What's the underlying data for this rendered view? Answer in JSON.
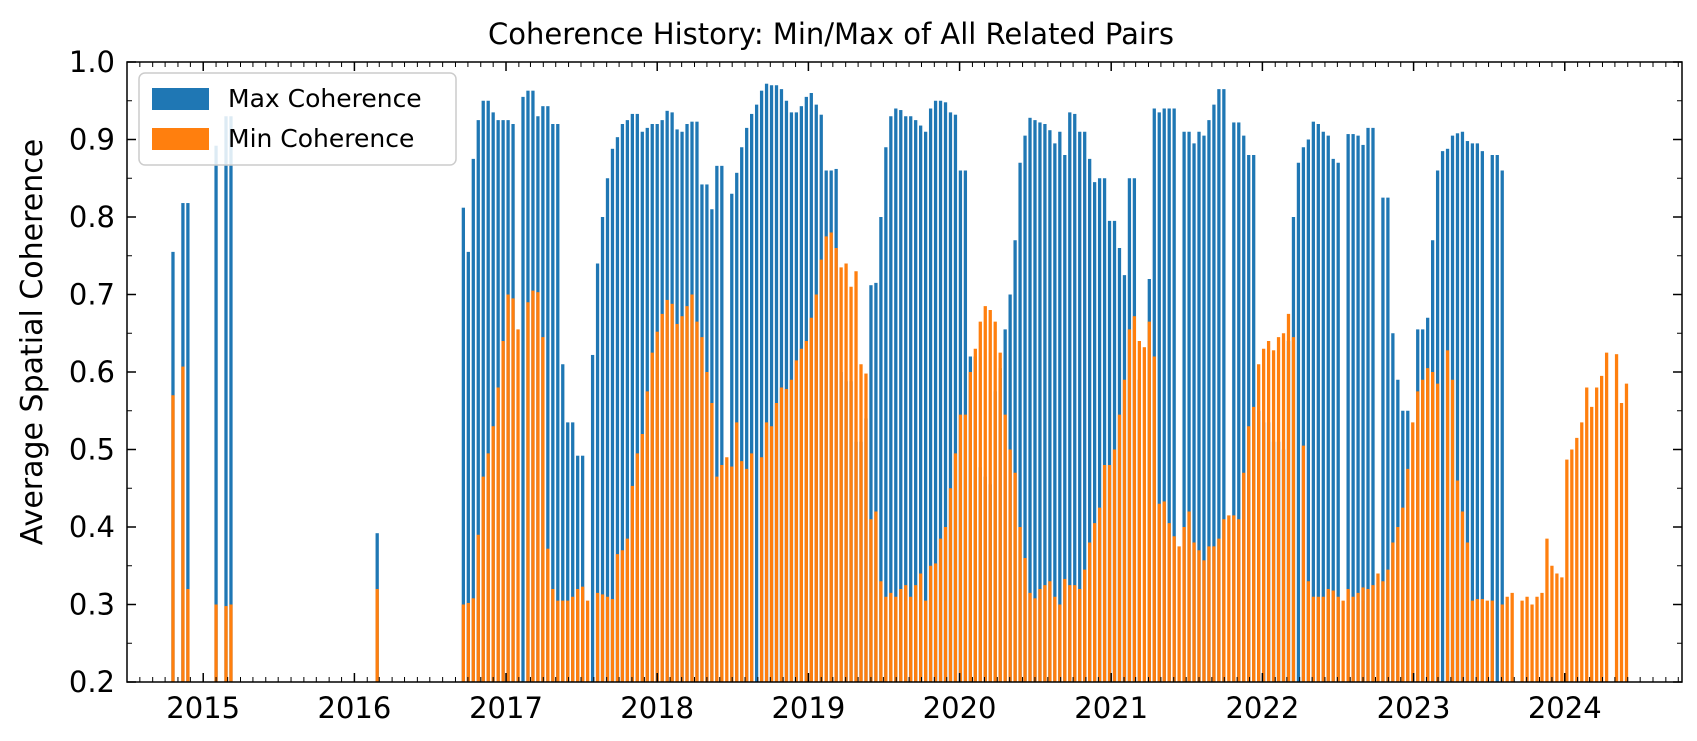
{
  "chart_data": {
    "type": "bar",
    "title": "Coherence History: Min/Max of All Related Pairs",
    "xlabel": "",
    "ylabel": "Average Spatial Coherence",
    "ylim": [
      0.2,
      1.0
    ],
    "y_ticks": [
      "0.2",
      "0.3",
      "0.4",
      "0.5",
      "0.6",
      "0.7",
      "0.8",
      "0.9",
      "1.0"
    ],
    "xlim": [
      "2014-07-01",
      "2024-10-10"
    ],
    "x_ticks": [
      {
        "label": "2015",
        "date": "2015-01-01"
      },
      {
        "label": "2016",
        "date": "2016-01-01"
      },
      {
        "label": "2017",
        "date": "2017-01-01"
      },
      {
        "label": "2018",
        "date": "2018-01-01"
      },
      {
        "label": "2019",
        "date": "2019-01-01"
      },
      {
        "label": "2020",
        "date": "2020-01-01"
      },
      {
        "label": "2021",
        "date": "2021-01-01"
      },
      {
        "label": "2022",
        "date": "2022-01-01"
      },
      {
        "label": "2023",
        "date": "2023-01-01"
      },
      {
        "label": "2024",
        "date": "2024-01-01"
      }
    ],
    "grid": false,
    "legend": "top-left",
    "colors": {
      "max": "#1f77b4",
      "min": "#ff7f0e"
    },
    "series": [
      {
        "name": "Max Coherence",
        "segments": [
          {
            "start": "2014-10-20",
            "values": [
              0.755,
              0.0,
              0.818,
              0.818
            ]
          },
          {
            "start": "2015-02-01",
            "values": [
              0.892,
              0.0,
              0.93,
              0.93
            ]
          },
          {
            "start": "2016-02-25",
            "values": [
              0.392
            ]
          },
          {
            "start": "2016-09-20",
            "values": [
              0.812,
              0.755,
              0.875,
              0.925,
              0.95,
              0.95,
              0.935,
              0.925,
              0.925,
              0.925,
              0.92,
              0.0,
              0.955,
              0.963,
              0.963,
              0.93,
              0.943,
              0.943,
              0.92,
              0.92,
              0.61,
              0.535,
              0.535,
              0.492,
              0.492,
              0.0,
              0.622,
              0.74,
              0.8,
              0.85,
              0.888,
              0.903,
              0.92,
              0.925,
              0.933,
              0.933,
              0.91,
              0.915,
              0.92,
              0.92,
              0.925,
              0.937,
              0.935,
              0.913,
              0.91,
              0.92,
              0.923,
              0.923,
              0.842,
              0.842,
              0.81,
              0.866,
              0.866,
              0.0,
              0.83,
              0.857,
              0.89,
              0.915,
              0.933,
              0.945,
              0.963,
              0.972,
              0.97,
              0.97,
              0.965,
              0.95,
              0.935,
              0.935,
              0.943,
              0.955,
              0.96,
              0.945,
              0.932,
              0.86,
              0.86,
              0.862,
              0.6,
              0.588,
              0.588,
              0.51,
              0.51,
              0.54,
              0.712,
              0.715,
              0.8,
              0.89,
              0.93,
              0.94,
              0.938,
              0.93,
              0.93,
              0.925,
              0.918,
              0.91,
              0.94,
              0.95,
              0.95,
              0.948,
              0.935,
              0.932,
              0.86,
              0.86,
              0.62,
              0.62,
              0.477,
              0.465,
              0.455,
              0.575,
              0.605,
              0.655,
              0.7,
              0.77,
              0.87,
              0.905,
              0.928,
              0.925,
              0.922,
              0.92,
              0.912,
              0.895,
              0.91,
              0.88,
              0.935,
              0.933,
              0.91,
              0.91,
              0.875,
              0.845,
              0.85,
              0.85,
              0.795,
              0.795,
              0.76,
              0.725,
              0.85,
              0.85,
              0.59,
              0.0,
              0.72,
              0.94,
              0.935,
              0.94,
              0.94,
              0.94,
              0.0,
              0.91,
              0.91,
              0.895,
              0.91,
              0.905,
              0.925,
              0.945,
              0.965,
              0.965,
              0.0,
              0.922,
              0.922,
              0.905,
              0.88,
              0.88,
              0.55,
              0.535,
              0.535,
              0.51,
              0.51,
              0.5,
              0.64,
              0.8,
              0.87,
              0.89,
              0.9,
              0.923,
              0.92,
              0.91,
              0.905,
              0.875,
              0.87,
              0.0,
              0.907,
              0.907,
              0.905,
              0.893,
              0.915,
              0.915,
              0.0,
              0.825,
              0.825,
              0.65,
              0.59,
              0.55,
              0.55,
              0.0,
              0.655,
              0.655,
              0.67,
              0.77,
              0.86,
              0.885,
              0.888,
              0.905,
              0.908,
              0.91,
              0.898,
              0.895,
              0.895,
              0.885,
              0.0,
              0.88,
              0.88,
              0.86
            ]
          }
        ]
      },
      {
        "name": "Min Coherence",
        "segments": [
          {
            "start": "2014-10-20",
            "values": [
              0.57,
              0.0,
              0.607,
              0.32
            ]
          },
          {
            "start": "2015-02-01",
            "values": [
              0.3,
              0.0,
              0.298,
              0.3
            ]
          },
          {
            "start": "2016-02-25",
            "values": [
              0.32
            ]
          },
          {
            "start": "2016-09-20",
            "values": [
              0.3,
              0.302,
              0.308,
              0.39,
              0.465,
              0.495,
              0.53,
              0.58,
              0.64,
              0.7,
              0.695,
              0.655,
              0.0,
              0.69,
              0.705,
              0.703,
              0.645,
              0.372,
              0.32,
              0.305,
              0.305,
              0.305,
              0.31,
              0.32,
              0.323,
              0.305,
              0.0,
              0.315,
              0.313,
              0.31,
              0.307,
              0.365,
              0.37,
              0.385,
              0.453,
              0.495,
              0.52,
              0.575,
              0.625,
              0.652,
              0.675,
              0.693,
              0.688,
              0.662,
              0.672,
              0.685,
              0.7,
              0.665,
              0.645,
              0.6,
              0.56,
              0.465,
              0.48,
              0.49,
              0.478,
              0.535,
              0.485,
              0.475,
              0.495,
              0.0,
              0.49,
              0.535,
              0.53,
              0.56,
              0.58,
              0.578,
              0.59,
              0.615,
              0.63,
              0.64,
              0.67,
              0.7,
              0.745,
              0.775,
              0.78,
              0.76,
              0.735,
              0.74,
              0.71,
              0.73,
              0.61,
              0.598,
              0.41,
              0.42,
              0.33,
              0.31,
              0.315,
              0.31,
              0.32,
              0.325,
              0.31,
              0.325,
              0.34,
              0.305,
              0.35,
              0.353,
              0.385,
              0.4,
              0.45,
              0.495,
              0.545,
              0.545,
              0.6,
              0.63,
              0.665,
              0.685,
              0.68,
              0.665,
              0.625,
              0.545,
              0.5,
              0.47,
              0.4,
              0.36,
              0.315,
              0.308,
              0.32,
              0.325,
              0.33,
              0.31,
              0.3,
              0.333,
              0.325,
              0.325,
              0.32,
              0.345,
              0.38,
              0.405,
              0.425,
              0.48,
              0.48,
              0.5,
              0.545,
              0.59,
              0.655,
              0.672,
              0.64,
              0.632,
              0.665,
              0.62,
              0.43,
              0.433,
              0.405,
              0.388,
              0.375,
              0.4,
              0.42,
              0.38,
              0.37,
              0.357,
              0.375,
              0.375,
              0.385,
              0.41,
              0.415,
              0.415,
              0.41,
              0.47,
              0.53,
              0.555,
              0.61,
              0.63,
              0.64,
              0.628,
              0.645,
              0.65,
              0.675,
              0.645,
              0.0,
              0.505,
              0.33,
              0.31,
              0.31,
              0.31,
              0.32,
              0.318,
              0.31,
              0.305,
              0.32,
              0.31,
              0.315,
              0.322,
              0.32,
              0.325,
              0.34,
              0.33,
              0.345,
              0.38,
              0.4,
              0.425,
              0.475,
              0.535,
              0.575,
              0.59,
              0.605,
              0.6,
              0.585,
              0.0,
              0.628,
              0.59,
              0.46,
              0.42,
              0.38,
              0.305,
              0.307,
              0.307,
              0.305,
              0.305,
              0.0,
              0.3,
              0.31,
              0.315,
              0.0,
              0.305,
              0.31,
              0.3,
              0.31,
              0.315,
              0.385,
              0.35,
              0.34,
              0.335,
              0.487,
              0.5,
              0.515,
              0.535,
              0.58,
              0.555,
              0.58,
              0.595,
              0.625,
              0.0,
              0.623,
              0.56,
              0.585
            ]
          }
        ]
      }
    ]
  }
}
